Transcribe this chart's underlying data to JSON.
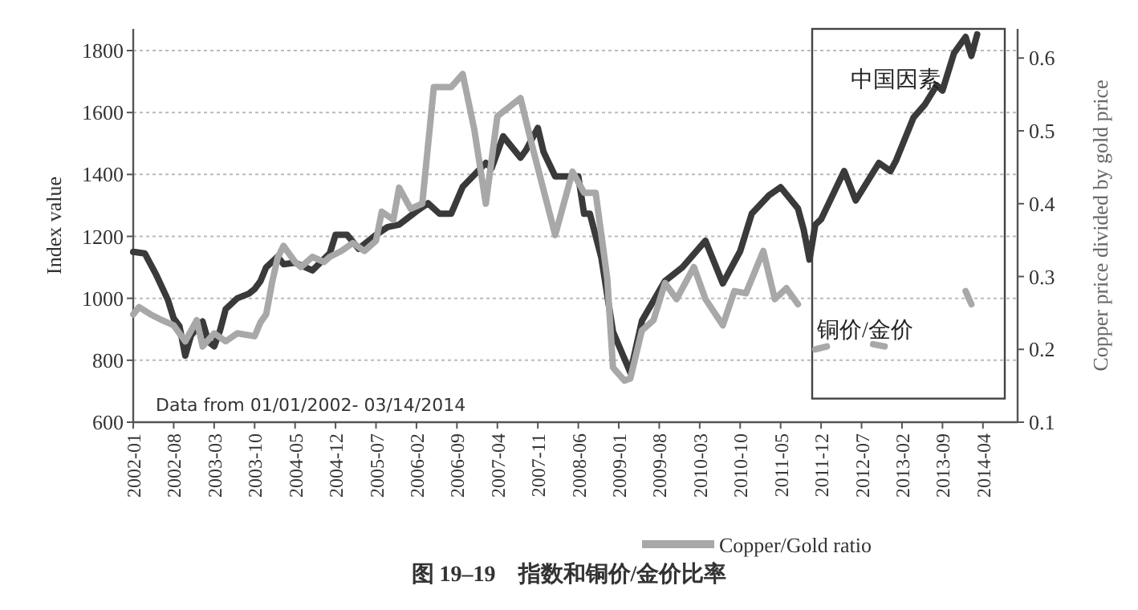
{
  "chart_data": {
    "type": "line",
    "title": "图 19–19　指数和铜价/金价比率",
    "ylabel": "Index value",
    "y2label": "Copper price divided by gold price",
    "annotations": [
      "Data from 01/01/2002- 03/14/2014",
      "铜价/金价",
      "中国因素"
    ],
    "xlim": [
      "2002-01",
      "2014-10"
    ],
    "xticks": [
      "2002-01",
      "2002-08",
      "2003-03",
      "2003-10",
      "2004-05",
      "2004-12",
      "2005-07",
      "2006-02",
      "2006-09",
      "2007-04",
      "2007-11",
      "2008-06",
      "2009-01",
      "2009-08",
      "2010-03",
      "2010-10",
      "2011-05",
      "2011-12",
      "2012-07",
      "2013-02",
      "2013-09",
      "2014-04"
    ],
    "ylim": [
      600,
      1870
    ],
    "yticks": [
      600,
      800,
      1000,
      1200,
      1400,
      1600,
      1800
    ],
    "y2lim": [
      0.1,
      0.64
    ],
    "y2ticks": [
      0.1,
      0.2,
      0.3,
      0.4,
      0.5,
      0.6
    ],
    "grid": "y",
    "legend": "bottom",
    "line_style": "solid",
    "marker": "none",
    "series": [
      {
        "color": "#3a3a3a",
        "x": [
          "2002-01",
          "2002-03",
          "2002-04",
          "2002-05",
          "2002-07",
          "2002-08",
          "2002-09",
          "2002-10",
          "2002-11",
          "2003-01",
          "2003-02",
          "2003-03",
          "2003-04",
          "2003-05",
          "2003-07",
          "2003-09",
          "2003-10",
          "2003-11",
          "2003-12",
          "2004-02",
          "2004-03",
          "2004-05",
          "2004-08",
          "2004-11",
          "2004-12",
          "2005-02",
          "2005-04",
          "2005-07",
          "2005-09",
          "2005-11",
          "2006-02",
          "2006-04",
          "2006-06",
          "2006-08",
          "2006-10",
          "2007-02",
          "2007-03",
          "2007-05",
          "2007-08",
          "2007-09",
          "2007-11",
          "2007-12",
          "2008-02",
          "2008-06",
          "2008-07",
          "2008-08",
          "2008-10",
          "2008-12",
          "2009-03",
          "2009-05",
          "2009-09",
          "2009-12",
          "2010-04",
          "2010-07",
          "2010-10",
          "2010-12",
          "2011-03",
          "2011-05",
          "2011-08",
          "2011-09",
          "2011-10",
          "2011-11",
          "2011-12",
          "2012-04",
          "2012-06",
          "2012-10",
          "2012-12",
          "2013-01",
          "2013-04",
          "2013-06",
          "2013-08",
          "2013-09",
          "2013-11",
          "2014-01",
          "2014-02",
          "2014-03"
        ],
        "values": [
          1150,
          1145,
          1110,
          1075,
          995,
          935,
          910,
          815,
          880,
          925,
          860,
          845,
          895,
          965,
          1000,
          1015,
          1030,
          1055,
          1100,
          1135,
          1110,
          1115,
          1090,
          1145,
          1205,
          1205,
          1160,
          1205,
          1230,
          1238,
          1281,
          1307,
          1273,
          1273,
          1360,
          1437,
          1420,
          1523,
          1454,
          1480,
          1550,
          1472,
          1394,
          1394,
          1273,
          1273,
          1130,
          892,
          760,
          927,
          1056,
          1100,
          1186,
          1048,
          1152,
          1273,
          1333,
          1359,
          1290,
          1221,
          1125,
          1238,
          1255,
          1411,
          1316,
          1437,
          1411,
          1446,
          1584,
          1627,
          1688,
          1671,
          1792,
          1844,
          1783,
          1852
        ]
      },
      {
        "name": "Copper/Gold ratio",
        "color": "#a8a8a8",
        "axis": "y2",
        "x": [
          "2002-01",
          "2002-02",
          "2002-04",
          "2002-06",
          "2002-08",
          "2002-10",
          "2002-12",
          "2003-01",
          "2003-03",
          "2003-05",
          "2003-07",
          "2003-10",
          "2003-11",
          "2003-12",
          "2004-01",
          "2004-02",
          "2004-03",
          "2004-05",
          "2004-06",
          "2004-08",
          "2004-10",
          "2004-11",
          "2005-01",
          "2005-03",
          "2005-05",
          "2005-07",
          "2005-08",
          "2005-10",
          "2005-11",
          "2006-01",
          "2006-03",
          "2006-05",
          "2006-08",
          "2006-10",
          "2006-12",
          "2007-02",
          "2007-04",
          "2007-08",
          "2007-10",
          "2008-02",
          "2008-05",
          "2008-07",
          "2008-09",
          "2008-11",
          "2008-12",
          "2009-02",
          "2009-03",
          "2009-05",
          "2009-07",
          "2009-09",
          "2009-11",
          "2010-02",
          "2010-04",
          "2010-07",
          "2010-09",
          "2010-11",
          "2011-02",
          "2011-04",
          "2011-06",
          "2011-08"
        ],
        "values": [
          0.248,
          0.258,
          0.248,
          0.24,
          0.233,
          0.211,
          0.24,
          0.204,
          0.222,
          0.211,
          0.222,
          0.218,
          0.237,
          0.248,
          0.291,
          0.326,
          0.342,
          0.32,
          0.313,
          0.327,
          0.32,
          0.327,
          0.335,
          0.346,
          0.335,
          0.349,
          0.389,
          0.378,
          0.422,
          0.393,
          0.4,
          0.56,
          0.56,
          0.578,
          0.502,
          0.4,
          0.52,
          0.545,
          0.48,
          0.357,
          0.444,
          0.415,
          0.415,
          0.298,
          0.175,
          0.157,
          0.16,
          0.226,
          0.24,
          0.291,
          0.269,
          0.313,
          0.269,
          0.233,
          0.28,
          0.277,
          0.335,
          0.269,
          0.284,
          0.262
        ]
      },
      {
        "color": "#a8a8a8",
        "axis": "y2",
        "x": [
          "2011-11",
          "2012-01"
        ],
        "values": [
          0.2,
          0.204
        ]
      },
      {
        "color": "#a8a8a8",
        "axis": "y2",
        "x": [
          "2012-09",
          "2012-11"
        ],
        "values": [
          0.207,
          0.204
        ]
      },
      {
        "color": "#a8a8a8",
        "axis": "y2",
        "x": [
          "2014-01",
          "2014-02"
        ],
        "values": [
          0.28,
          0.262
        ]
      }
    ]
  }
}
